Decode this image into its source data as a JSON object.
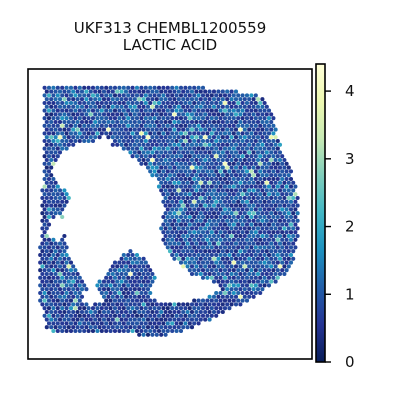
{
  "chart_data": {
    "type": "heatmap",
    "title": [
      "UKF313 CHEMBL1200559",
      "LACTIC ACID"
    ],
    "xlabel": "",
    "ylabel": "",
    "colorbar": {
      "ticks": [
        0,
        1,
        2,
        3,
        4
      ],
      "tick_labels": [
        "0",
        "1",
        "2",
        "3",
        "4"
      ],
      "range": [
        0,
        4.4
      ],
      "colormap_stops": [
        "#081d58",
        "#253494",
        "#225ea8",
        "#1d91c0",
        "#41b6c4",
        "#7fcdbb",
        "#c7e9b4",
        "#edf8b1",
        "#ffffd9"
      ]
    },
    "value_summary": {
      "typical": 0.85,
      "min": 0,
      "max": 4.3
    },
    "grid": false,
    "axes_ticks": false
  }
}
